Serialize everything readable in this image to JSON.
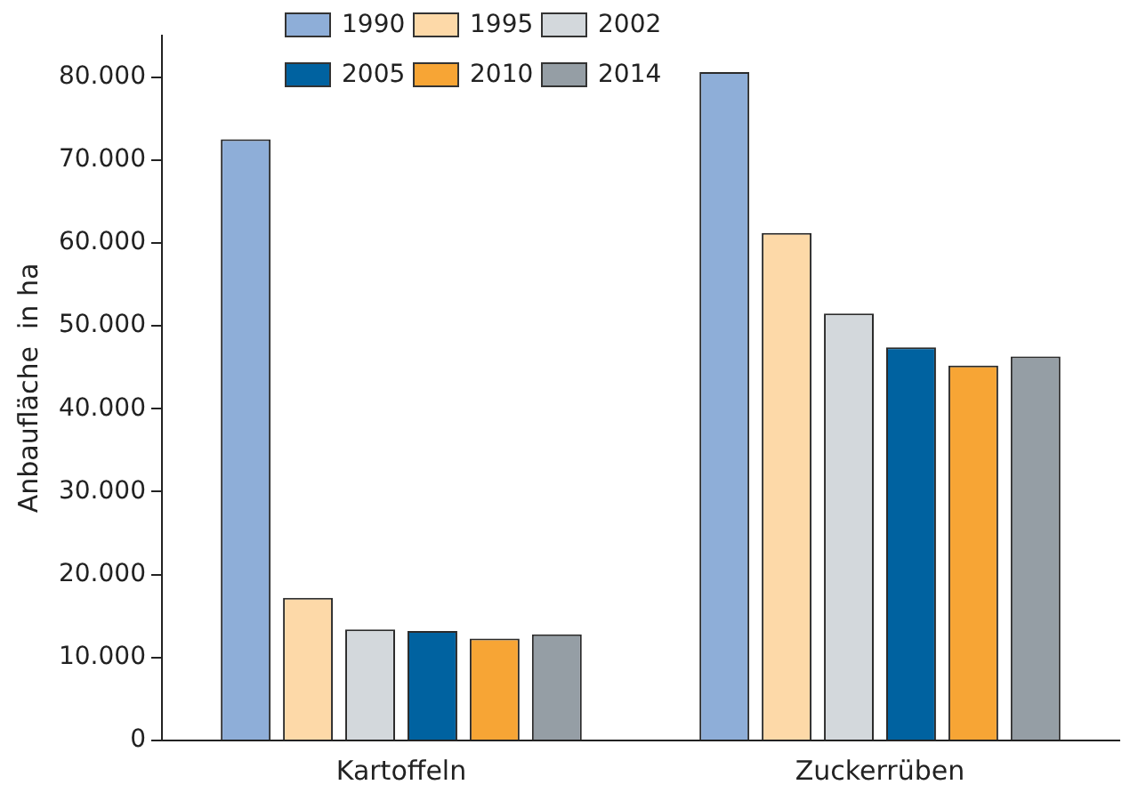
{
  "chart_data": {
    "type": "bar",
    "ylabel": "Anbaufläche  in ha",
    "categories": [
      "Kartoffeln",
      "Zuckerrüben"
    ],
    "series": [
      {
        "name": "1990",
        "color": "#8eaed8",
        "values": [
          72500,
          80600
        ]
      },
      {
        "name": "1995",
        "color": "#fdd9a8",
        "values": [
          17200,
          61200
        ]
      },
      {
        "name": "2002",
        "color": "#d3d8dc",
        "values": [
          13400,
          51500
        ]
      },
      {
        "name": "2005",
        "color": "#0062a0",
        "values": [
          13200,
          47400
        ]
      },
      {
        "name": "2010",
        "color": "#f7a535",
        "values": [
          12300,
          45200
        ]
      },
      {
        "name": "2014",
        "color": "#959ea5",
        "values": [
          12800,
          46300
        ]
      }
    ],
    "ylim": [
      0,
      85000
    ],
    "yticks": [
      0,
      {
        "value": 10000,
        "label": "10.000"
      },
      {
        "value": 20000,
        "label": "20.000"
      },
      {
        "value": 30000,
        "label": "30.000"
      },
      {
        "value": 40000,
        "label": "40.000"
      },
      {
        "value": 50000,
        "label": "50.000"
      },
      {
        "value": 60000,
        "label": "60.000"
      },
      {
        "value": 70000,
        "label": "70.000"
      },
      {
        "value": 80000,
        "label": "80.000"
      }
    ],
    "grid": false,
    "legend": "top"
  }
}
